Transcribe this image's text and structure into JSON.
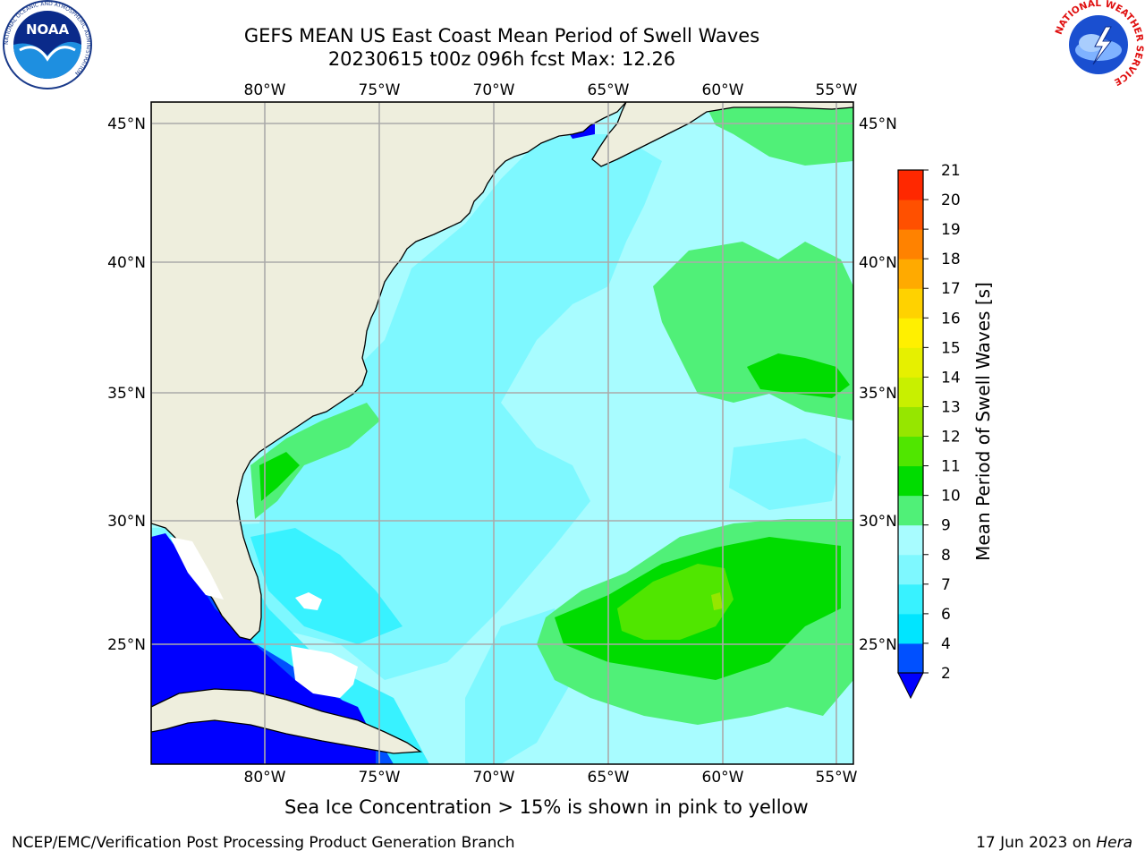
{
  "title": {
    "line1": "GEFS MEAN US East Coast Mean Period of Swell Waves",
    "line2": "20230615 t00z 096h fcst   Max: 12.26"
  },
  "axes": {
    "lon_labels": [
      "80°W",
      "75°W",
      "70°W",
      "65°W",
      "60°W",
      "55°W"
    ],
    "lat_labels": [
      "45°N",
      "40°N",
      "35°N",
      "30°N",
      "25°N"
    ],
    "lon_values": [
      -80,
      -75,
      -70,
      -65,
      -60,
      -55
    ],
    "lat_values": [
      45,
      40,
      35,
      30,
      25
    ],
    "lon_range": [
      -85,
      -54
    ],
    "lat_range": [
      20.5,
      45.7
    ]
  },
  "colorbar": {
    "label": "Mean Period of Swell Waves [s]",
    "ticks": [
      "2",
      "4",
      "6",
      "7",
      "8",
      "9",
      "10",
      "11",
      "12",
      "13",
      "14",
      "15",
      "16",
      "17",
      "18",
      "19",
      "20",
      "21"
    ],
    "colors": [
      "#0050ff",
      "#00e5ff",
      "#38f2ff",
      "#7ef8ff",
      "#a8fcff",
      "#50f078",
      "#00dc00",
      "#50e600",
      "#96e600",
      "#c8f000",
      "#e6f000",
      "#fff000",
      "#ffd200",
      "#ffaa00",
      "#ff8200",
      "#ff5000",
      "#ff2800",
      "#ff0000"
    ],
    "under_color": "#0000ff"
  },
  "colors": {
    "land": "#eeeedd",
    "ocean_base": "#a8fcff",
    "gridline": "#aaaaaa",
    "coast": "#000000"
  },
  "logos": {
    "noaa": "NOAA",
    "nws_ring": "NATIONAL WEATHER SERVICE",
    "noaa_ring": "NATIONAL OCEANIC AND ATMOSPHERIC ADMINISTRATION"
  },
  "note": "Sea Ice Concentration > 15% is shown in pink to yellow",
  "footer": {
    "left": "NCEP/EMC/Verification Post Processing Product Generation Branch",
    "right_date": "17 Jun 2023 on ",
    "right_host": "Hera"
  }
}
